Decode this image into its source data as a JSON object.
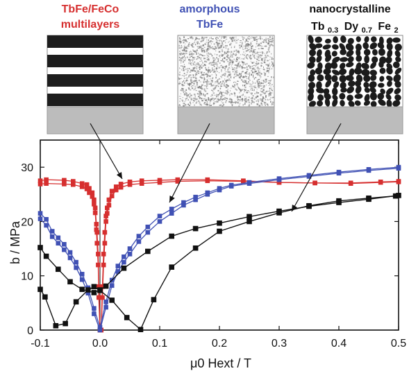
{
  "chart_data": {
    "type": "line",
    "xlabel": "μ0 Hext / T",
    "ylabel": "b / MPa",
    "xlim": [
      -0.1,
      0.5
    ],
    "ylim": [
      0,
      35
    ],
    "xticks": [
      "-0.1",
      "0.0",
      "0.1",
      "0.2",
      "0.3",
      "0.4",
      "0.5"
    ],
    "yticks": [
      "0",
      "10",
      "20",
      "30"
    ],
    "colors": {
      "red": "#d62f2f",
      "blue": "#4051b4",
      "black": "#111111",
      "light_gray": "#bcbcbc",
      "dark_stripe": "#1d1d1d"
    },
    "annotations": {
      "multilayers": {
        "line1": "TbFe/FeCo",
        "line2": "multilayers",
        "color": "#d62f2f"
      },
      "amorphous": {
        "line1": "amorphous",
        "line2": "TbFe",
        "color": "#4051b4"
      },
      "nanocrystalline": {
        "line1": "nanocrystalline",
        "line2_prefix": "Tb",
        "line2_sub1": "0.3",
        "line2_middle": "Dy",
        "line2_sub2": "0.7",
        "line2_suffix": "Fe",
        "line2_sub3": "2",
        "color": "#111111"
      }
    },
    "series": [
      {
        "color": "#d62f2f",
        "marker": "square",
        "x": [
          -0.1,
          -0.09,
          -0.06,
          -0.045,
          -0.03,
          -0.022,
          -0.018,
          -0.013,
          -0.01,
          -0.008,
          -0.006,
          -0.005,
          -0.003,
          -0.002,
          0.0,
          0.002,
          0.004,
          0.006,
          0.008,
          0.01,
          0.012,
          0.015,
          0.02,
          0.027,
          0.035,
          0.05,
          0.07,
          0.1,
          0.13,
          0.18,
          0.24,
          0.3,
          0.36,
          0.42,
          0.47,
          0.5
        ],
        "y": [
          27.5,
          27.7,
          27.6,
          27.4,
          27.0,
          26.8,
          26.1,
          25.3,
          24.0,
          22.5,
          19.5,
          18.0,
          14.0,
          8.0,
          0.0,
          0.0,
          8.0,
          14.0,
          18.0,
          21.0,
          22.5,
          24.0,
          25.6,
          26.4,
          26.9,
          27.3,
          27.5,
          27.6,
          27.7,
          27.7,
          27.5,
          27.2,
          27.1,
          27.1,
          27.3,
          27.4
        ]
      },
      {
        "color": "#d62f2f",
        "marker": "square",
        "x": [
          -0.1,
          -0.09,
          -0.06,
          -0.045,
          -0.03,
          -0.022,
          -0.018,
          -0.013,
          -0.01,
          -0.008,
          -0.006,
          -0.005,
          -0.003,
          -0.002,
          0.0,
          0.002,
          0.004,
          0.006,
          0.008,
          0.01,
          0.012,
          0.015,
          0.02,
          0.027,
          0.035,
          0.05,
          0.07,
          0.1,
          0.13,
          0.18,
          0.24,
          0.3,
          0.36,
          0.42,
          0.47,
          0.5
        ],
        "y": [
          26.9,
          27.0,
          26.9,
          26.8,
          26.4,
          26.0,
          25.3,
          24.6,
          23.2,
          21.6,
          18.5,
          16.0,
          12.0,
          6.0,
          0.0,
          0.0,
          6.0,
          12.0,
          16.0,
          20.0,
          21.5,
          23.0,
          24.7,
          25.8,
          26.3,
          26.8,
          27.0,
          27.2,
          27.4,
          27.5,
          27.4,
          27.2,
          27.1,
          27.0,
          27.2,
          27.3
        ]
      },
      {
        "color": "#4051b4",
        "marker": "square",
        "x": [
          -0.1,
          -0.09,
          -0.08,
          -0.07,
          -0.06,
          -0.05,
          -0.04,
          -0.03,
          -0.02,
          -0.01,
          0.0,
          0.01,
          0.02,
          0.03,
          0.04,
          0.05,
          0.065,
          0.08,
          0.1,
          0.12,
          0.14,
          0.16,
          0.18,
          0.2,
          0.22,
          0.25,
          0.3,
          0.35,
          0.4,
          0.45,
          0.5
        ],
        "y": [
          21.5,
          20.4,
          18.2,
          17.0,
          15.8,
          14.3,
          12.5,
          10.3,
          7.8,
          4.0,
          0.5,
          5.2,
          9.2,
          11.8,
          13.5,
          15.0,
          17.3,
          19.0,
          21.0,
          22.3,
          23.5,
          24.5,
          25.3,
          26.1,
          26.7,
          27.2,
          27.9,
          28.5,
          29.1,
          29.6,
          30.0
        ]
      },
      {
        "color": "#4051b4",
        "marker": "square",
        "x": [
          -0.1,
          -0.09,
          -0.08,
          -0.07,
          -0.06,
          -0.05,
          -0.04,
          -0.03,
          -0.02,
          -0.01,
          0.0,
          0.01,
          0.02,
          0.03,
          0.04,
          0.05,
          0.065,
          0.08,
          0.1,
          0.12,
          0.14,
          0.16,
          0.18,
          0.2,
          0.22,
          0.25,
          0.3,
          0.35,
          0.4,
          0.45,
          0.5
        ],
        "y": [
          20.5,
          19.3,
          17.2,
          16.0,
          14.8,
          13.3,
          11.5,
          9.3,
          6.8,
          3.0,
          0.0,
          4.2,
          8.2,
          10.8,
          12.5,
          14.0,
          16.3,
          18.0,
          20.0,
          21.5,
          23.0,
          24.0,
          25.0,
          25.8,
          26.5,
          27.0,
          27.7,
          28.3,
          28.9,
          29.4,
          29.8
        ]
      },
      {
        "color": "#111111",
        "marker": "square",
        "x": [
          -0.1,
          -0.092,
          -0.074,
          -0.058,
          -0.04,
          -0.02,
          -0.01,
          0.0,
          0.02,
          0.045,
          0.068,
          0.09,
          0.12,
          0.16,
          0.2,
          0.25,
          0.3,
          0.35,
          0.4,
          0.45,
          0.495
        ],
        "y": [
          7.5,
          6.1,
          0.8,
          1.2,
          5.2,
          7.4,
          8.0,
          7.3,
          5.5,
          2.3,
          0.1,
          5.6,
          11.6,
          15.1,
          18.2,
          20.0,
          21.6,
          22.9,
          23.8,
          24.3,
          24.7
        ]
      },
      {
        "color": "#111111",
        "marker": "square",
        "x": [
          -0.1,
          -0.09,
          -0.07,
          -0.05,
          -0.03,
          -0.01,
          0.0,
          0.01,
          0.04,
          0.08,
          0.12,
          0.16,
          0.2,
          0.25,
          0.3,
          0.35,
          0.4,
          0.45,
          0.5
        ],
        "y": [
          15.2,
          13.6,
          11.2,
          8.9,
          7.5,
          6.9,
          7.4,
          8.1,
          11.4,
          14.5,
          17.3,
          18.7,
          19.7,
          20.9,
          21.9,
          22.8,
          23.5,
          24.1,
          24.8
        ]
      }
    ]
  }
}
